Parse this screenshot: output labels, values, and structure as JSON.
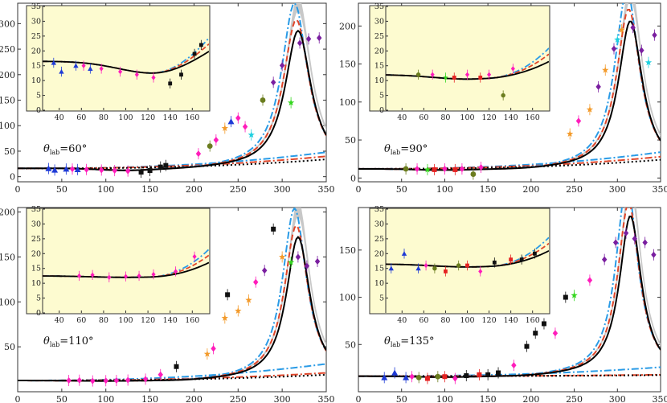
{
  "chart_data": [
    {
      "type": "line",
      "panel": "top-left",
      "label": {
        "symbol": "θ",
        "sub": "lab",
        "value": "=60°"
      },
      "xlim": [
        0,
        350
      ],
      "ylim": [
        -10,
        340
      ],
      "xticks": [
        0,
        50,
        100,
        150,
        200,
        250,
        300,
        350
      ],
      "yticks": [
        0,
        50,
        100,
        150,
        200,
        250,
        300
      ],
      "inset": {
        "xlim": [
          25,
          175
        ],
        "ylim": [
          0,
          35
        ],
        "xticks": [
          40,
          60,
          80,
          100,
          120,
          140,
          160
        ],
        "yticks": [
          0,
          5,
          10,
          15,
          20,
          25,
          30,
          35
        ]
      },
      "curve": {
        "E0": 20,
        "base": 16.5,
        "dip_e": 125,
        "dip_d": 4,
        "dip_w": 45,
        "peak_e": 318,
        "peak_h": 270,
        "width": 36,
        "tail": 7,
        "nonres": [
          16,
          48,
          40
        ]
      },
      "data": [
        {
          "e": 35,
          "y": 16,
          "m": "tri",
          "c": "#1f3bd6"
        },
        {
          "e": 42,
          "y": 13,
          "m": "tri",
          "c": "#1f3bd6"
        },
        {
          "e": 55,
          "y": 15,
          "m": "tri",
          "c": "#1f3bd6"
        },
        {
          "e": 68,
          "y": 14,
          "m": "tri",
          "c": "#1f3bd6"
        },
        {
          "e": 62,
          "y": 15,
          "m": "dia",
          "c": "#ff1dbb"
        },
        {
          "e": 78,
          "y": 14,
          "m": "dia",
          "c": "#ff1dbb"
        },
        {
          "e": 95,
          "y": 13,
          "m": "dia",
          "c": "#ff1dbb"
        },
        {
          "e": 110,
          "y": 12,
          "m": "dia",
          "c": "#ff1dbb"
        },
        {
          "e": 125,
          "y": 11,
          "m": "dia",
          "c": "#ff1dbb"
        },
        {
          "e": 140,
          "y": 9,
          "m": "sq",
          "c": "#111111"
        },
        {
          "e": 150,
          "y": 12,
          "m": "sq",
          "c": "#111111"
        },
        {
          "e": 162,
          "y": 19,
          "m": "sq",
          "c": "#111111"
        },
        {
          "e": 168,
          "y": 22,
          "m": "sq",
          "c": "#111111"
        },
        {
          "e": 205,
          "y": 45,
          "m": "dia",
          "c": "#ff1dbb"
        },
        {
          "e": 218,
          "y": 60,
          "m": "cir",
          "c": "#6b7d1e"
        },
        {
          "e": 225,
          "y": 72,
          "m": "dia",
          "c": "#ff1dbb"
        },
        {
          "e": 235,
          "y": 95,
          "m": "star",
          "c": "#f39a2a"
        },
        {
          "e": 242,
          "y": 108,
          "m": "tri",
          "c": "#1f3bd6"
        },
        {
          "e": 250,
          "y": 115,
          "m": "dia",
          "c": "#ff1dbb"
        },
        {
          "e": 258,
          "y": 98,
          "m": "dia",
          "c": "#ff1dbb"
        },
        {
          "e": 265,
          "y": 82,
          "m": "star",
          "c": "#1fd0e0"
        },
        {
          "e": 278,
          "y": 150,
          "m": "cir",
          "c": "#6b7d1e"
        },
        {
          "e": 290,
          "y": 185,
          "m": "dia",
          "c": "#7a1fa0"
        },
        {
          "e": 300,
          "y": 218,
          "m": "dia",
          "c": "#7a1fa0"
        },
        {
          "e": 310,
          "y": 145,
          "m": "star",
          "c": "#34d61f"
        },
        {
          "e": 320,
          "y": 262,
          "m": "dia",
          "c": "#7a1fa0"
        },
        {
          "e": 330,
          "y": 270,
          "m": "dia",
          "c": "#7a1fa0"
        },
        {
          "e": 342,
          "y": 272,
          "m": "dia",
          "c": "#7a1fa0"
        }
      ]
    },
    {
      "type": "line",
      "panel": "top-right",
      "label": {
        "symbol": "θ",
        "sub": "lab",
        "value": "=90°"
      },
      "xlim": [
        0,
        350
      ],
      "ylim": [
        -5,
        230
      ],
      "xticks": [
        0,
        50,
        100,
        150,
        200,
        250,
        300,
        350
      ],
      "yticks": [
        0,
        50,
        100,
        150,
        200
      ],
      "inset": {
        "xlim": [
          25,
          175
        ],
        "ylim": [
          0,
          35
        ],
        "xticks": [
          40,
          60,
          80,
          100,
          120,
          140,
          160
        ],
        "yticks": [
          0,
          5,
          10,
          15,
          20,
          25,
          30,
          35
        ]
      },
      "curve": {
        "E0": 20,
        "base": 12,
        "dip_e": 100,
        "dip_d": 1.5,
        "dip_w": 45,
        "peak_e": 315,
        "peak_h": 195,
        "width": 34,
        "tail": 6,
        "nonres": [
          12,
          34,
          28
        ]
      },
      "data": [
        {
          "e": 55,
          "y": 12,
          "m": "cir",
          "c": "#6b7d1e"
        },
        {
          "e": 68,
          "y": 12,
          "m": "dia",
          "c": "#ff1dbb"
        },
        {
          "e": 80,
          "y": 11,
          "m": "star",
          "c": "#34d61f"
        },
        {
          "e": 88,
          "y": 11,
          "m": "sq",
          "c": "#e52222"
        },
        {
          "e": 100,
          "y": 12,
          "m": "dia",
          "c": "#ff1dbb"
        },
        {
          "e": 112,
          "y": 11,
          "m": "sq",
          "c": "#e52222"
        },
        {
          "e": 120,
          "y": 12,
          "m": "dia",
          "c": "#ff1dbb"
        },
        {
          "e": 133,
          "y": 5,
          "m": "cir",
          "c": "#6b7d1e"
        },
        {
          "e": 142,
          "y": 14,
          "m": "dia",
          "c": "#ff1dbb"
        },
        {
          "e": 245,
          "y": 58,
          "m": "star",
          "c": "#f39a2a"
        },
        {
          "e": 255,
          "y": 75,
          "m": "dia",
          "c": "#ff1dbb"
        },
        {
          "e": 268,
          "y": 90,
          "m": "star",
          "c": "#f39a2a"
        },
        {
          "e": 278,
          "y": 120,
          "m": "dia",
          "c": "#7a1fa0"
        },
        {
          "e": 286,
          "y": 142,
          "m": "star",
          "c": "#f39a2a"
        },
        {
          "e": 296,
          "y": 170,
          "m": "dia",
          "c": "#7a1fa0"
        },
        {
          "e": 300,
          "y": 182,
          "m": "star",
          "c": "#1fd0e0"
        },
        {
          "e": 305,
          "y": 195,
          "m": "star",
          "c": "#f39a2a"
        },
        {
          "e": 318,
          "y": 198,
          "m": "dia",
          "c": "#7a1fa0"
        },
        {
          "e": 328,
          "y": 168,
          "m": "dia",
          "c": "#7a1fa0"
        },
        {
          "e": 336,
          "y": 152,
          "m": "star",
          "c": "#1fd0e0"
        },
        {
          "e": 343,
          "y": 188,
          "m": "dia",
          "c": "#7a1fa0"
        }
      ]
    },
    {
      "type": "line",
      "panel": "bottom-left",
      "label": {
        "symbol": "θ",
        "sub": "lab",
        "value": "=110°"
      },
      "xlim": [
        0,
        350
      ],
      "ylim": [
        0,
        205
      ],
      "xticks": [
        0,
        50,
        100,
        150,
        200,
        250,
        300,
        350
      ],
      "yticks": [
        50,
        100,
        150,
        200
      ],
      "inset": {
        "xlim": [
          25,
          175
        ],
        "ylim": [
          0,
          35
        ],
        "xticks": [
          40,
          60,
          80,
          100,
          120,
          140,
          160
        ],
        "yticks": [
          0,
          5,
          10,
          15,
          20,
          25,
          30,
          35
        ]
      },
      "curve": {
        "E0": 20,
        "base": 12.5,
        "dip_e": 100,
        "dip_d": 0.5,
        "dip_w": 45,
        "peak_e": 318,
        "peak_h": 160,
        "width": 33,
        "tail": 5,
        "nonres": [
          12.5,
          31,
          21
        ]
      },
      "data": [
        {
          "e": 58,
          "y": 12.5,
          "m": "dia",
          "c": "#ff1dbb"
        },
        {
          "e": 70,
          "y": 12.8,
          "m": "dia",
          "c": "#ff1dbb"
        },
        {
          "e": 85,
          "y": 12,
          "m": "dia",
          "c": "#ff1dbb"
        },
        {
          "e": 100,
          "y": 12.3,
          "m": "dia",
          "c": "#ff1dbb"
        },
        {
          "e": 112,
          "y": 12.5,
          "m": "dia",
          "c": "#ff1dbb"
        },
        {
          "e": 125,
          "y": 13,
          "m": "dia",
          "c": "#ff1dbb"
        },
        {
          "e": 145,
          "y": 14,
          "m": "dia",
          "c": "#ff1dbb"
        },
        {
          "e": 162,
          "y": 19,
          "m": "dia",
          "c": "#ff1dbb"
        },
        {
          "e": 180,
          "y": 28,
          "m": "sq",
          "c": "#111111"
        },
        {
          "e": 215,
          "y": 42,
          "m": "star",
          "c": "#f39a2a"
        },
        {
          "e": 222,
          "y": 48,
          "m": "dia",
          "c": "#ff1dbb"
        },
        {
          "e": 235,
          "y": 82,
          "m": "star",
          "c": "#f39a2a"
        },
        {
          "e": 238,
          "y": 108,
          "m": "sq",
          "c": "#111111"
        },
        {
          "e": 250,
          "y": 90,
          "m": "star",
          "c": "#f39a2a"
        },
        {
          "e": 262,
          "y": 102,
          "m": "star",
          "c": "#f39a2a"
        },
        {
          "e": 270,
          "y": 122,
          "m": "dia",
          "c": "#ff1dbb"
        },
        {
          "e": 280,
          "y": 135,
          "m": "dia",
          "c": "#7a1fa0"
        },
        {
          "e": 290,
          "y": 181,
          "m": "sq",
          "c": "#111111"
        },
        {
          "e": 300,
          "y": 150,
          "m": "star",
          "c": "#f39a2a"
        },
        {
          "e": 310,
          "y": 144,
          "m": "star",
          "c": "#34d61f"
        },
        {
          "e": 318,
          "y": 150,
          "m": "dia",
          "c": "#7a1fa0"
        },
        {
          "e": 328,
          "y": 140,
          "m": "dia",
          "c": "#7a1fa0"
        },
        {
          "e": 340,
          "y": 145,
          "m": "dia",
          "c": "#7a1fa0"
        }
      ]
    },
    {
      "type": "line",
      "panel": "bottom-right",
      "label": {
        "symbol": "θ",
        "sub": "lab",
        "value": "=135°"
      },
      "xlim": [
        0,
        350
      ],
      "ylim": [
        0,
        195
      ],
      "xticks": [
        0,
        50,
        100,
        150,
        200,
        250,
        300,
        350
      ],
      "yticks": [
        50,
        100,
        150
      ],
      "inset": {
        "xlim": [
          25,
          175
        ],
        "ylim": [
          0,
          35
        ],
        "xticks": [
          40,
          60,
          80,
          100,
          120,
          140,
          160
        ],
        "yticks": [
          5,
          10,
          15,
          20,
          25,
          30,
          35
        ]
      },
      "curve": {
        "E0": 20,
        "base": 16.5,
        "dip_e": 100,
        "dip_d": 1.0,
        "dip_w": 45,
        "peak_e": 315,
        "peak_h": 170,
        "width": 31,
        "tail": 4,
        "nonres": [
          16.5,
          26,
          18
        ]
      },
      "data": [
        {
          "e": 30,
          "y": 15,
          "m": "tri",
          "c": "#1f3bd6"
        },
        {
          "e": 42,
          "y": 20,
          "m": "tri",
          "c": "#1f3bd6"
        },
        {
          "e": 55,
          "y": 15,
          "m": "tri",
          "c": "#1f3bd6"
        },
        {
          "e": 62,
          "y": 16,
          "m": "dia",
          "c": "#ff1dbb"
        },
        {
          "e": 70,
          "y": 15,
          "m": "cir",
          "c": "#6b7d1e"
        },
        {
          "e": 80,
          "y": 14,
          "m": "sq",
          "c": "#e52222"
        },
        {
          "e": 92,
          "y": 16,
          "m": "cir",
          "c": "#6b7d1e"
        },
        {
          "e": 100,
          "y": 16,
          "m": "sq",
          "c": "#e52222"
        },
        {
          "e": 112,
          "y": 14,
          "m": "dia",
          "c": "#ff1dbb"
        },
        {
          "e": 125,
          "y": 17,
          "m": "sq",
          "c": "#111111"
        },
        {
          "e": 140,
          "y": 18,
          "m": "sq",
          "c": "#e52222"
        },
        {
          "e": 150,
          "y": 18,
          "m": "sq",
          "c": "#111111"
        },
        {
          "e": 162,
          "y": 20,
          "m": "sq",
          "c": "#111111"
        },
        {
          "e": 180,
          "y": 28,
          "m": "dia",
          "c": "#ff1dbb"
        },
        {
          "e": 195,
          "y": 48,
          "m": "sq",
          "c": "#111111"
        },
        {
          "e": 205,
          "y": 62,
          "m": "sq",
          "c": "#111111"
        },
        {
          "e": 215,
          "y": 72,
          "m": "sq",
          "c": "#111111"
        },
        {
          "e": 228,
          "y": 62,
          "m": "dia",
          "c": "#ff1dbb"
        },
        {
          "e": 240,
          "y": 100,
          "m": "sq",
          "c": "#111111"
        },
        {
          "e": 250,
          "y": 102,
          "m": "star",
          "c": "#34d61f"
        },
        {
          "e": 268,
          "y": 118,
          "m": "dia",
          "c": "#ff1dbb"
        },
        {
          "e": 285,
          "y": 140,
          "m": "dia",
          "c": "#7a1fa0"
        },
        {
          "e": 298,
          "y": 158,
          "m": "dia",
          "c": "#7a1fa0"
        },
        {
          "e": 310,
          "y": 168,
          "m": "dia",
          "c": "#7a1fa0"
        },
        {
          "e": 320,
          "y": 162,
          "m": "dia",
          "c": "#7a1fa0"
        },
        {
          "e": 332,
          "y": 158,
          "m": "dia",
          "c": "#7a1fa0"
        },
        {
          "e": 342,
          "y": 145,
          "m": "dia",
          "c": "#7a1fa0"
        }
      ]
    }
  ],
  "style": {
    "curve_black": "#000000",
    "curve_red": "#e0462a",
    "curve_blue": "#2a9be6",
    "band_grey": "#c8c8c8",
    "inset_bg": "#fdfbd0"
  }
}
